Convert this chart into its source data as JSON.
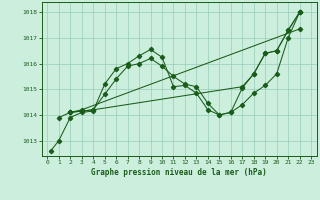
{
  "title": "Graphe pression niveau de la mer (hPa)",
  "bg_color": "#cceedd",
  "grid_color": "#99ccbb",
  "line_color": "#1a5c1a",
  "xlim": [
    -0.5,
    23.5
  ],
  "ylim": [
    1012.4,
    1018.4
  ],
  "yticks": [
    1013,
    1014,
    1015,
    1016,
    1017,
    1018
  ],
  "xticks": [
    0,
    1,
    2,
    3,
    4,
    5,
    6,
    7,
    8,
    9,
    10,
    11,
    12,
    13,
    14,
    15,
    16,
    17,
    18,
    19,
    20,
    21,
    22,
    23
  ],
  "line1_x": [
    0.3,
    1,
    2,
    3,
    4,
    5,
    6,
    7,
    8,
    9,
    10,
    11,
    12,
    13,
    14,
    15,
    16,
    17,
    18,
    19,
    20,
    21,
    22
  ],
  "line1_y": [
    1012.6,
    1013.0,
    1013.9,
    1014.1,
    1014.15,
    1015.2,
    1015.8,
    1016.0,
    1016.3,
    1016.55,
    1016.25,
    1015.1,
    1015.15,
    1014.85,
    1014.2,
    1014.0,
    1014.1,
    1014.4,
    1014.85,
    1015.15,
    1015.6,
    1017.0,
    1018.0
  ],
  "line2_x": [
    1,
    2,
    3,
    4,
    5,
    6,
    7,
    8,
    9,
    10,
    11,
    12,
    13,
    14,
    15,
    16,
    17,
    18,
    19,
    20,
    21,
    22
  ],
  "line2_y": [
    1013.9,
    1014.1,
    1014.15,
    1014.2,
    1014.8,
    1015.4,
    1015.9,
    1016.0,
    1016.2,
    1015.9,
    1015.5,
    1015.2,
    1015.1,
    1014.45,
    1014.0,
    1014.1,
    1015.05,
    1015.6,
    1016.4,
    1016.5,
    1017.3,
    1018.0
  ],
  "line3_x": [
    2,
    3,
    4,
    17,
    18,
    19,
    20,
    21,
    22
  ],
  "line3_y": [
    1014.1,
    1014.15,
    1014.2,
    1015.1,
    1015.6,
    1016.4,
    1016.5,
    1017.3,
    1018.0
  ],
  "line4_x": [
    2,
    3,
    22
  ],
  "line4_y": [
    1014.1,
    1014.2,
    1017.35
  ]
}
